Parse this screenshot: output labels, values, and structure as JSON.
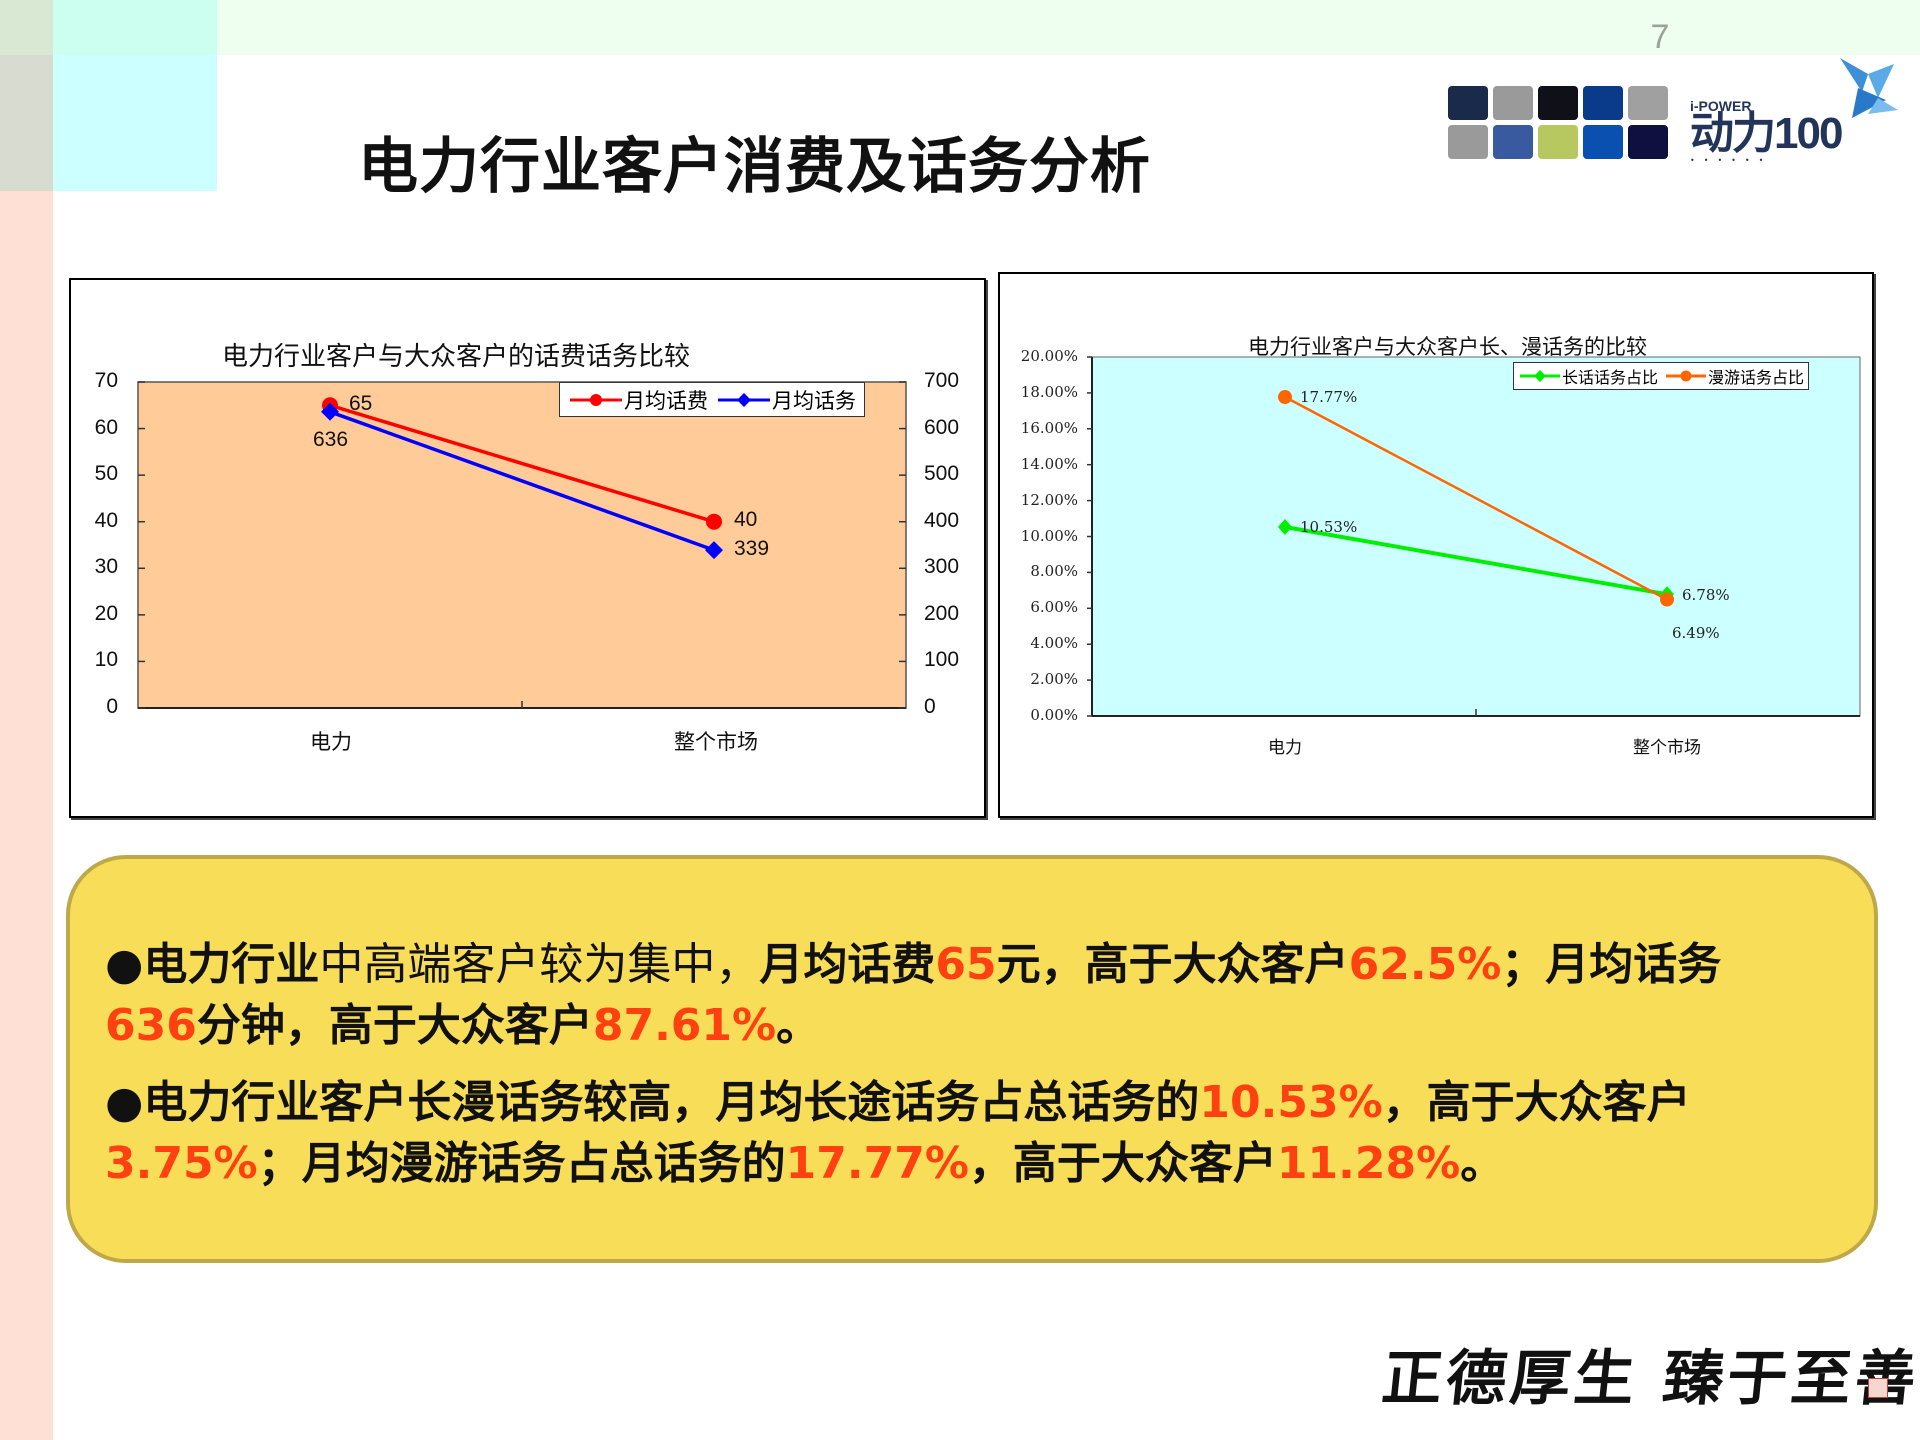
{
  "slide": {
    "page_number": "7",
    "title": "电力行业客户消费及话务分析",
    "logo": {
      "brand_small": "i-POWER",
      "brand_main": "动力100",
      "tile_colors": [
        "#1a2a4a",
        "#9a9a9a",
        "#101018",
        "#0a3a8a",
        "#a0a0a0",
        "#9a9a9a",
        "#3a5aa0",
        "#b8c860",
        "#0a50b0",
        "#101040"
      ]
    },
    "motto": "正德厚生  臻于至善"
  },
  "chart_data": [
    {
      "type": "line",
      "title": "电力行业客户与大众客户的话费话务比较",
      "categories": [
        "电力",
        "整个市场"
      ],
      "series": [
        {
          "name": "月均话费",
          "axis": "left",
          "values": [
            65,
            40
          ],
          "color": "#ff0000",
          "marker": "circle"
        },
        {
          "name": "月均话务",
          "axis": "right",
          "values": [
            636,
            339
          ],
          "color": "#0000ff",
          "marker": "diamond"
        }
      ],
      "y_left": {
        "min": 0,
        "max": 70,
        "ticks": [
          "0",
          "10",
          "20",
          "30",
          "40",
          "50",
          "60",
          "70"
        ]
      },
      "y_right": {
        "min": 0,
        "max": 700,
        "ticks": [
          "0",
          "100",
          "200",
          "300",
          "400",
          "500",
          "600",
          "700"
        ]
      },
      "data_labels": {
        "s0": [
          "65",
          "40"
        ],
        "s1": [
          "636",
          "339"
        ]
      },
      "plot_bg": "#ffcc99",
      "legend_position": "top-right",
      "xlabel": "",
      "ylabel": ""
    },
    {
      "type": "line",
      "title": "电力行业客户与大众客户长、漫话务的比较",
      "categories": [
        "电力",
        "整个市场"
      ],
      "series": [
        {
          "name": "长话话务占比",
          "values": [
            10.53,
            6.78
          ],
          "color": "#00ee00",
          "marker": "diamond"
        },
        {
          "name": "漫游话务占比",
          "values": [
            17.77,
            6.49
          ],
          "color": "#ff6600",
          "marker": "circle"
        }
      ],
      "y": {
        "min": 0,
        "max": 20,
        "unit": "%",
        "ticks": [
          "0.00%",
          "2.00%",
          "4.00%",
          "6.00%",
          "8.00%",
          "10.00%",
          "12.00%",
          "14.00%",
          "16.00%",
          "18.00%",
          "20.00%"
        ]
      },
      "data_labels": {
        "s0": [
          "10.53%",
          "6.78%"
        ],
        "s1": [
          "17.77%",
          "6.49%"
        ]
      },
      "plot_bg": "#ccffff",
      "legend_position": "top-right",
      "xlabel": "",
      "ylabel": ""
    }
  ],
  "summary": {
    "p1": {
      "bullet": "●",
      "a": "电力行业",
      "b": "中高端客户较为集中，",
      "c": "月均话费",
      "d": "65",
      "e": "元，高于大众客户",
      "f": "62.5%",
      "g": "；月均话务",
      "h": "636",
      "i": "分钟，高于大众客户",
      "j": "87.61%",
      "k": "。"
    },
    "p2": {
      "bullet": "●",
      "a": "电力行业客户长漫话务较高，月均长途话务占总话务的",
      "b": "10.53%",
      "c": "，高于大众客户",
      "d": "3.75%",
      "e": "；月均漫游话务占总话务的",
      "f": "17.77%",
      "g": "，高于大众客户",
      "h": "11.28%",
      "i": "。"
    }
  }
}
